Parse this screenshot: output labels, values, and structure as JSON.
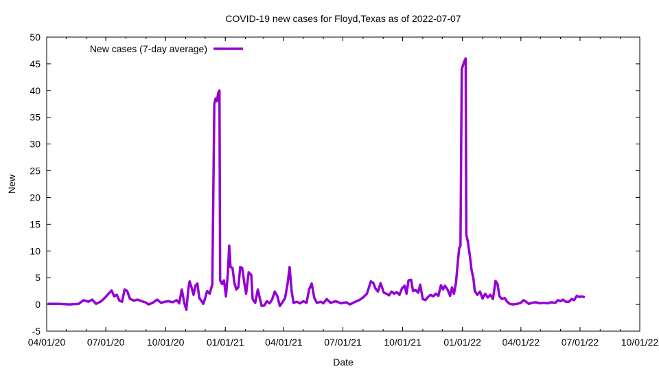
{
  "chart_data": {
    "type": "line",
    "title": "COVID-19 new cases for Floyd,Texas as of 2022-07-07",
    "xlabel": "Date",
    "ylabel": "New",
    "ylim": [
      -5,
      50
    ],
    "yticks": [
      -5,
      0,
      5,
      10,
      15,
      20,
      25,
      30,
      35,
      40,
      45,
      50
    ],
    "xlim": [
      "2020-04-01",
      "2022-10-01"
    ],
    "xticks": [
      {
        "date": "2020-04-01",
        "label": "04/01/20"
      },
      {
        "date": "2020-07-01",
        "label": "07/01/20"
      },
      {
        "date": "2020-10-01",
        "label": "10/01/20"
      },
      {
        "date": "2021-01-01",
        "label": "01/01/21"
      },
      {
        "date": "2021-04-01",
        "label": "04/01/21"
      },
      {
        "date": "2021-07-01",
        "label": "07/01/21"
      },
      {
        "date": "2021-10-01",
        "label": "10/01/21"
      },
      {
        "date": "2022-01-01",
        "label": "01/01/22"
      },
      {
        "date": "2022-04-01",
        "label": "04/01/22"
      },
      {
        "date": "2022-07-01",
        "label": "07/01/22"
      },
      {
        "date": "2022-10-01",
        "label": "10/01/22"
      }
    ],
    "grid": false,
    "legend_position": "top-left",
    "series": [
      {
        "name": "New cases (7-day average)",
        "color": "#9400d3",
        "points": [
          [
            "2020-04-04",
            0.1
          ],
          [
            "2020-04-20",
            0.1
          ],
          [
            "2020-05-06",
            0.0
          ],
          [
            "2020-05-20",
            0.1
          ],
          [
            "2020-05-28",
            0.8
          ],
          [
            "2020-06-04",
            0.5
          ],
          [
            "2020-06-10",
            0.9
          ],
          [
            "2020-06-16",
            0.1
          ],
          [
            "2020-06-24",
            0.6
          ],
          [
            "2020-06-30",
            1.3
          ],
          [
            "2020-07-06",
            2.1
          ],
          [
            "2020-07-10",
            2.6
          ],
          [
            "2020-07-14",
            1.5
          ],
          [
            "2020-07-18",
            1.8
          ],
          [
            "2020-07-22",
            0.7
          ],
          [
            "2020-07-26",
            0.5
          ],
          [
            "2020-07-30",
            2.8
          ],
          [
            "2020-08-03",
            2.5
          ],
          [
            "2020-08-07",
            1.1
          ],
          [
            "2020-08-13",
            0.7
          ],
          [
            "2020-08-19",
            0.9
          ],
          [
            "2020-08-25",
            0.6
          ],
          [
            "2020-08-31",
            0.4
          ],
          [
            "2020-09-05",
            0.0
          ],
          [
            "2020-09-11",
            0.3
          ],
          [
            "2020-09-18",
            0.9
          ],
          [
            "2020-09-24",
            0.3
          ],
          [
            "2020-09-30",
            0.5
          ],
          [
            "2020-10-06",
            0.6
          ],
          [
            "2020-10-12",
            0.4
          ],
          [
            "2020-10-18",
            0.8
          ],
          [
            "2020-10-22",
            0.2
          ],
          [
            "2020-10-26",
            2.8
          ],
          [
            "2020-10-30",
            0.2
          ],
          [
            "2020-11-02",
            -1.0
          ],
          [
            "2020-11-05",
            2.8
          ],
          [
            "2020-11-07",
            4.3
          ],
          [
            "2020-11-10",
            3.2
          ],
          [
            "2020-11-13",
            1.8
          ],
          [
            "2020-11-16",
            3.5
          ],
          [
            "2020-11-19",
            3.9
          ],
          [
            "2020-11-22",
            1.2
          ],
          [
            "2020-11-25",
            0.7
          ],
          [
            "2020-11-28",
            0.1
          ],
          [
            "2020-12-01",
            1.2
          ],
          [
            "2020-12-04",
            2.5
          ],
          [
            "2020-12-08",
            2.0
          ],
          [
            "2020-12-12",
            3.8
          ],
          [
            "2020-12-15",
            37.5
          ],
          [
            "2020-12-17",
            38.5
          ],
          [
            "2020-12-19",
            38.0
          ],
          [
            "2020-12-21",
            39.5
          ],
          [
            "2020-12-23",
            40.0
          ],
          [
            "2020-12-24",
            4.5
          ],
          [
            "2020-12-27",
            3.8
          ],
          [
            "2020-12-30",
            4.5
          ],
          [
            "2021-01-02",
            1.5
          ],
          [
            "2021-01-05",
            6.0
          ],
          [
            "2021-01-07",
            11.0
          ],
          [
            "2021-01-09",
            7.0
          ],
          [
            "2021-01-12",
            6.8
          ],
          [
            "2021-01-15",
            4.0
          ],
          [
            "2021-01-18",
            2.8
          ],
          [
            "2021-01-21",
            3.2
          ],
          [
            "2021-01-24",
            7.0
          ],
          [
            "2021-01-27",
            6.8
          ],
          [
            "2021-01-30",
            4.2
          ],
          [
            "2021-02-02",
            2.0
          ],
          [
            "2021-02-06",
            6.0
          ],
          [
            "2021-02-10",
            5.5
          ],
          [
            "2021-02-12",
            1.0
          ],
          [
            "2021-02-16",
            0.3
          ],
          [
            "2021-02-20",
            2.8
          ],
          [
            "2021-02-23",
            1.2
          ],
          [
            "2021-02-26",
            -0.3
          ],
          [
            "2021-03-02",
            -0.2
          ],
          [
            "2021-03-06",
            0.6
          ],
          [
            "2021-03-10",
            0.2
          ],
          [
            "2021-03-14",
            0.9
          ],
          [
            "2021-03-18",
            2.4
          ],
          [
            "2021-03-22",
            1.6
          ],
          [
            "2021-03-26",
            -0.3
          ],
          [
            "2021-03-30",
            0.4
          ],
          [
            "2021-04-03",
            1.2
          ],
          [
            "2021-04-07",
            4.0
          ],
          [
            "2021-04-10",
            7.0
          ],
          [
            "2021-04-13",
            2.5
          ],
          [
            "2021-04-16",
            0.3
          ],
          [
            "2021-04-21",
            0.5
          ],
          [
            "2021-04-26",
            0.2
          ],
          [
            "2021-05-01",
            0.6
          ],
          [
            "2021-05-06",
            0.3
          ],
          [
            "2021-05-10",
            2.8
          ],
          [
            "2021-05-14",
            3.9
          ],
          [
            "2021-05-18",
            1.2
          ],
          [
            "2021-05-22",
            0.3
          ],
          [
            "2021-05-28",
            0.5
          ],
          [
            "2021-06-01",
            0.2
          ],
          [
            "2021-06-06",
            1.0
          ],
          [
            "2021-06-12",
            0.3
          ],
          [
            "2021-06-20",
            0.6
          ],
          [
            "2021-06-28",
            0.2
          ],
          [
            "2021-07-06",
            0.4
          ],
          [
            "2021-07-12",
            0.0
          ],
          [
            "2021-07-20",
            0.5
          ],
          [
            "2021-07-26",
            0.8
          ],
          [
            "2021-08-01",
            1.3
          ],
          [
            "2021-08-07",
            2.0
          ],
          [
            "2021-08-13",
            4.3
          ],
          [
            "2021-08-17",
            4.0
          ],
          [
            "2021-08-20",
            3.0
          ],
          [
            "2021-08-24",
            2.4
          ],
          [
            "2021-08-28",
            4.0
          ],
          [
            "2021-09-02",
            2.2
          ],
          [
            "2021-09-06",
            2.0
          ],
          [
            "2021-09-10",
            1.7
          ],
          [
            "2021-09-14",
            2.4
          ],
          [
            "2021-09-18",
            2.0
          ],
          [
            "2021-09-22",
            2.3
          ],
          [
            "2021-09-26",
            1.8
          ],
          [
            "2021-09-30",
            3.0
          ],
          [
            "2021-10-04",
            3.5
          ],
          [
            "2021-10-07",
            2.0
          ],
          [
            "2021-10-10",
            4.5
          ],
          [
            "2021-10-14",
            4.6
          ],
          [
            "2021-10-17",
            2.5
          ],
          [
            "2021-10-21",
            2.7
          ],
          [
            "2021-10-25",
            2.2
          ],
          [
            "2021-10-28",
            3.7
          ],
          [
            "2021-11-01",
            1.0
          ],
          [
            "2021-11-05",
            0.8
          ],
          [
            "2021-11-09",
            1.4
          ],
          [
            "2021-11-13",
            1.8
          ],
          [
            "2021-11-17",
            1.5
          ],
          [
            "2021-11-21",
            2.0
          ],
          [
            "2021-11-25",
            1.6
          ],
          [
            "2021-11-29",
            3.6
          ],
          [
            "2021-12-02",
            2.8
          ],
          [
            "2021-12-05",
            3.5
          ],
          [
            "2021-12-09",
            2.8
          ],
          [
            "2021-12-13",
            1.6
          ],
          [
            "2021-12-16",
            3.2
          ],
          [
            "2021-12-19",
            2.0
          ],
          [
            "2021-12-22",
            4.0
          ],
          [
            "2021-12-25",
            8.0
          ],
          [
            "2021-12-27",
            10.5
          ],
          [
            "2021-12-29",
            11.0
          ],
          [
            "2021-12-31",
            44.0
          ],
          [
            "2022-01-02",
            44.8
          ],
          [
            "2022-01-04",
            45.5
          ],
          [
            "2022-01-06",
            46.0
          ],
          [
            "2022-01-07",
            13.0
          ],
          [
            "2022-01-09",
            12.0
          ],
          [
            "2022-01-12",
            9.5
          ],
          [
            "2022-01-15",
            6.5
          ],
          [
            "2022-01-18",
            4.8
          ],
          [
            "2022-01-20",
            2.5
          ],
          [
            "2022-01-24",
            1.8
          ],
          [
            "2022-01-28",
            2.4
          ],
          [
            "2022-02-01",
            1.1
          ],
          [
            "2022-02-05",
            2.0
          ],
          [
            "2022-02-09",
            1.3
          ],
          [
            "2022-02-13",
            1.8
          ],
          [
            "2022-02-17",
            1.0
          ],
          [
            "2022-02-21",
            4.4
          ],
          [
            "2022-02-24",
            3.8
          ],
          [
            "2022-02-27",
            1.5
          ],
          [
            "2022-03-03",
            1.0
          ],
          [
            "2022-03-07",
            1.2
          ],
          [
            "2022-03-11",
            0.5
          ],
          [
            "2022-03-15",
            0.1
          ],
          [
            "2022-03-20",
            0.0
          ],
          [
            "2022-03-26",
            0.1
          ],
          [
            "2022-04-01",
            0.3
          ],
          [
            "2022-04-05",
            0.8
          ],
          [
            "2022-04-09",
            0.5
          ],
          [
            "2022-04-13",
            0.1
          ],
          [
            "2022-04-18",
            0.3
          ],
          [
            "2022-04-24",
            0.4
          ],
          [
            "2022-04-30",
            0.2
          ],
          [
            "2022-05-06",
            0.3
          ],
          [
            "2022-05-12",
            0.2
          ],
          [
            "2022-05-18",
            0.4
          ],
          [
            "2022-05-24",
            0.3
          ],
          [
            "2022-05-28",
            0.8
          ],
          [
            "2022-06-01",
            0.6
          ],
          [
            "2022-06-05",
            0.9
          ],
          [
            "2022-06-09",
            0.5
          ],
          [
            "2022-06-14",
            0.5
          ],
          [
            "2022-06-18",
            1.0
          ],
          [
            "2022-06-22",
            0.8
          ],
          [
            "2022-06-26",
            1.6
          ],
          [
            "2022-06-30",
            1.4
          ],
          [
            "2022-07-03",
            1.5
          ],
          [
            "2022-07-07",
            1.4
          ]
        ]
      }
    ]
  }
}
